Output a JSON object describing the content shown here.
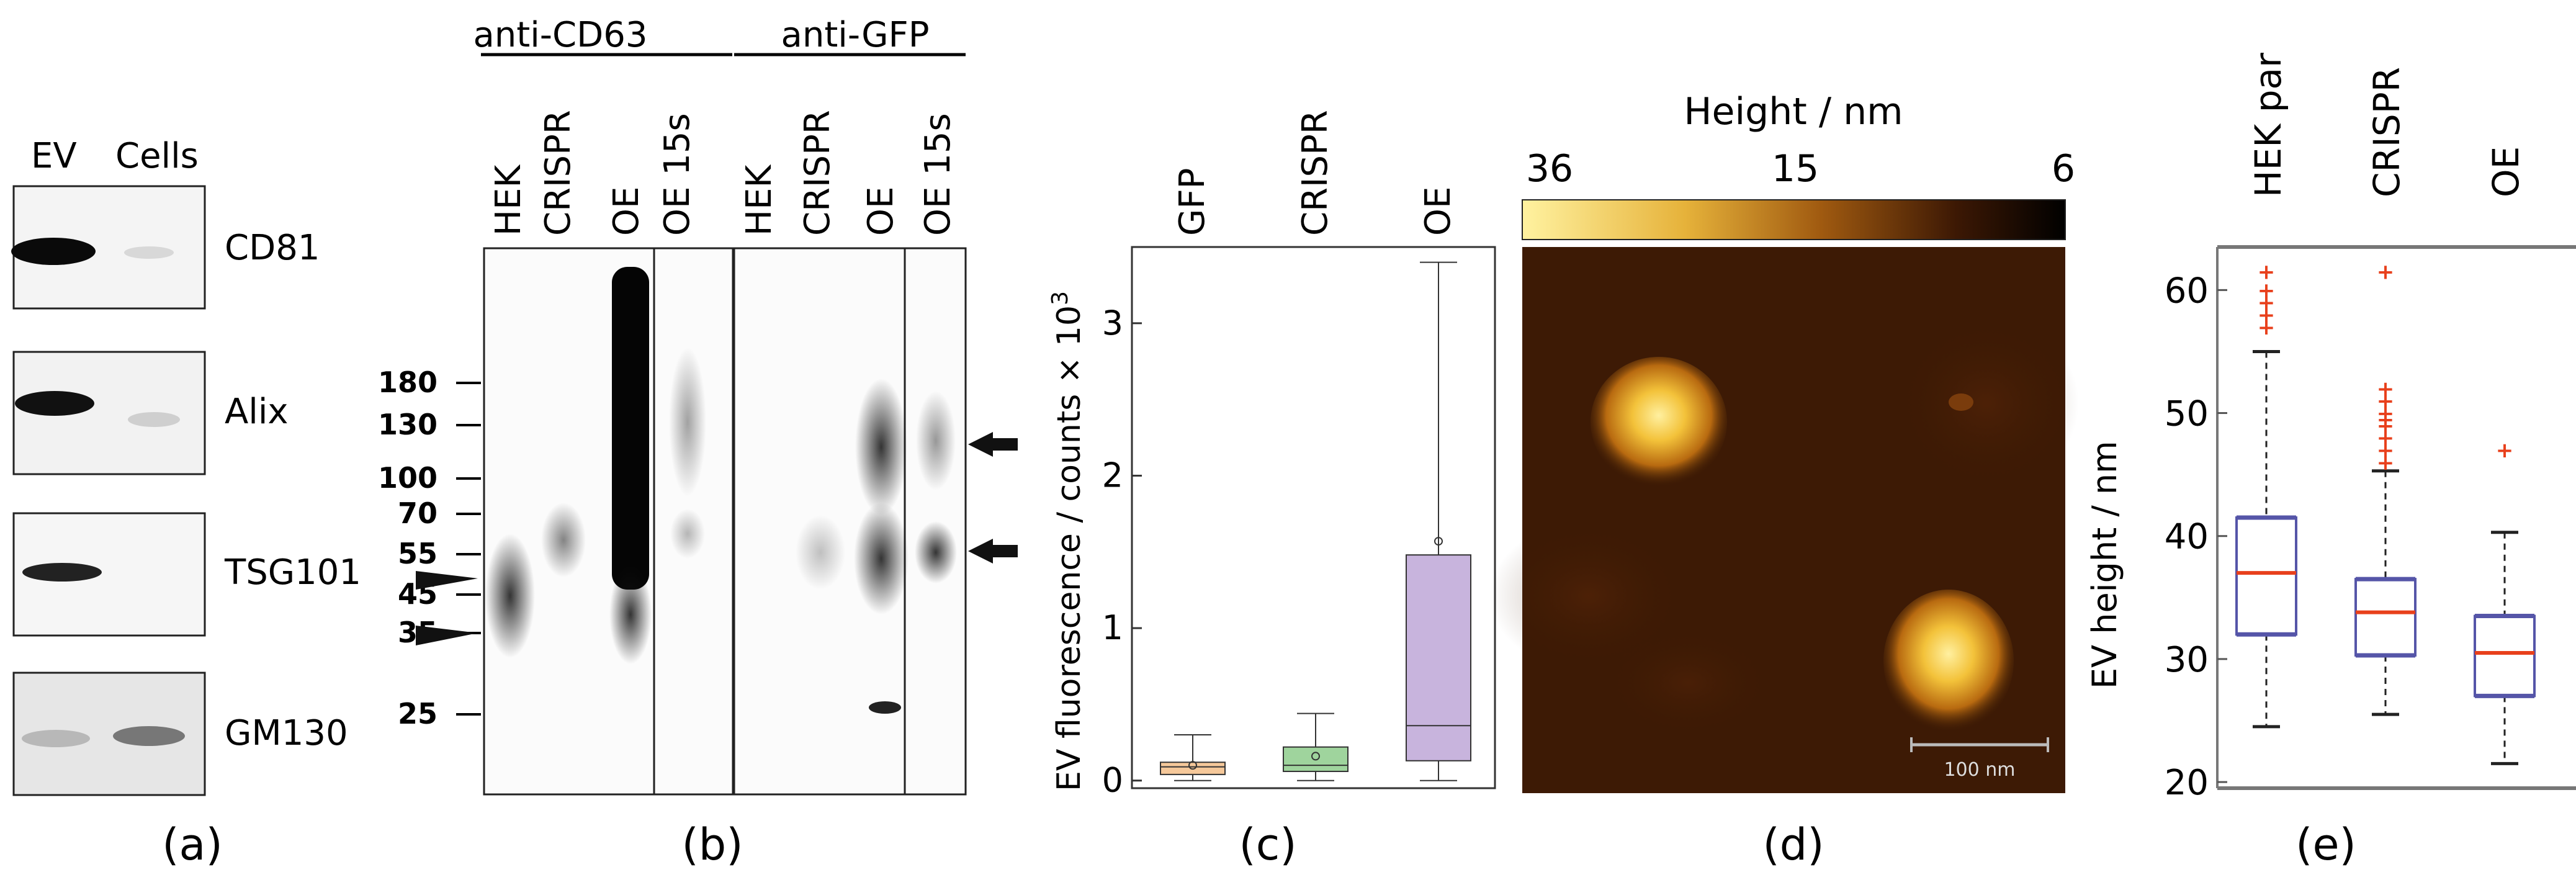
{
  "panels": {
    "a": {
      "label": "(a)",
      "lanes": [
        "EV",
        "Cells"
      ],
      "blots": [
        "CD81",
        "Alix",
        "TSG101",
        "GM130"
      ]
    },
    "b": {
      "label": "(b)",
      "groups": [
        "anti-CD63",
        "anti-GFP"
      ],
      "lanes": [
        "HEK",
        "CRISPR",
        "OE",
        "OE 15s"
      ],
      "markers": [
        "180",
        "130",
        "100",
        "70",
        "55",
        "45",
        "35",
        "25"
      ]
    },
    "c": {
      "label": "(c)",
      "categories": [
        "GFP",
        "CRISPR",
        "OE"
      ],
      "ylabel": "EV fluorescence / counts × 10",
      "ylabel_exp": "3",
      "ticks": [
        "0",
        "1",
        "2",
        "3"
      ],
      "colors": [
        "#f5c89a",
        "#9fd49d",
        "#c8b4dd"
      ]
    },
    "d": {
      "label": "(d)",
      "colorbar_title": "Height / nm",
      "colorbar_ticks": [
        "36",
        "15",
        "6"
      ],
      "scalebar": "100 nm"
    },
    "e": {
      "label": "(e)",
      "categories": [
        "HEK par",
        "CRISPR",
        "OE"
      ],
      "ylabel": "EV height / nm",
      "ticks": [
        "20",
        "30",
        "40",
        "50",
        "60"
      ]
    }
  },
  "chart_data": [
    {
      "type": "box",
      "panel": "c",
      "categories": [
        "GFP",
        "CRISPR",
        "OE"
      ],
      "series": [
        {
          "whisker_low": 0.0,
          "q1": 0.04,
          "median": 0.09,
          "q3": 0.12,
          "whisker_high": 0.3,
          "mean": 0.1
        },
        {
          "whisker_low": 0.0,
          "q1": 0.06,
          "median": 0.1,
          "q3": 0.22,
          "whisker_high": 0.44,
          "mean": 0.16
        },
        {
          "whisker_low": 0.0,
          "q1": 0.13,
          "median": 0.36,
          "q3": 1.48,
          "whisker_high": 3.4,
          "mean": 1.57
        }
      ],
      "ylim": [
        -0.05,
        3.5
      ],
      "colors": [
        "#f5c89a",
        "#9fd49d",
        "#c8b4dd"
      ]
    },
    {
      "type": "box",
      "panel": "e",
      "categories": [
        "HEK par",
        "CRISPR",
        "OE"
      ],
      "series": [
        {
          "whisker_low": 24.5,
          "q1": 32,
          "median": 37,
          "q3": 41.5,
          "whisker_high": 55,
          "outliers": [
            57,
            58,
            59,
            60,
            61.5
          ]
        },
        {
          "whisker_low": 25.5,
          "q1": 30.3,
          "median": 33.8,
          "q3": 36.5,
          "whisker_high": 45.3,
          "outliers": [
            46,
            47,
            48,
            49,
            49.5,
            50,
            51,
            52,
            61.5
          ]
        },
        {
          "whisker_low": 21.5,
          "q1": 27,
          "median": 30.5,
          "q3": 33.5,
          "whisker_high": 40.3,
          "outliers": [
            47
          ]
        }
      ],
      "ylim": [
        19.5,
        63.5
      ],
      "colors": {
        "box": "#5555a8",
        "median": "#e8401c",
        "outlier": "#e8401c"
      }
    }
  ]
}
